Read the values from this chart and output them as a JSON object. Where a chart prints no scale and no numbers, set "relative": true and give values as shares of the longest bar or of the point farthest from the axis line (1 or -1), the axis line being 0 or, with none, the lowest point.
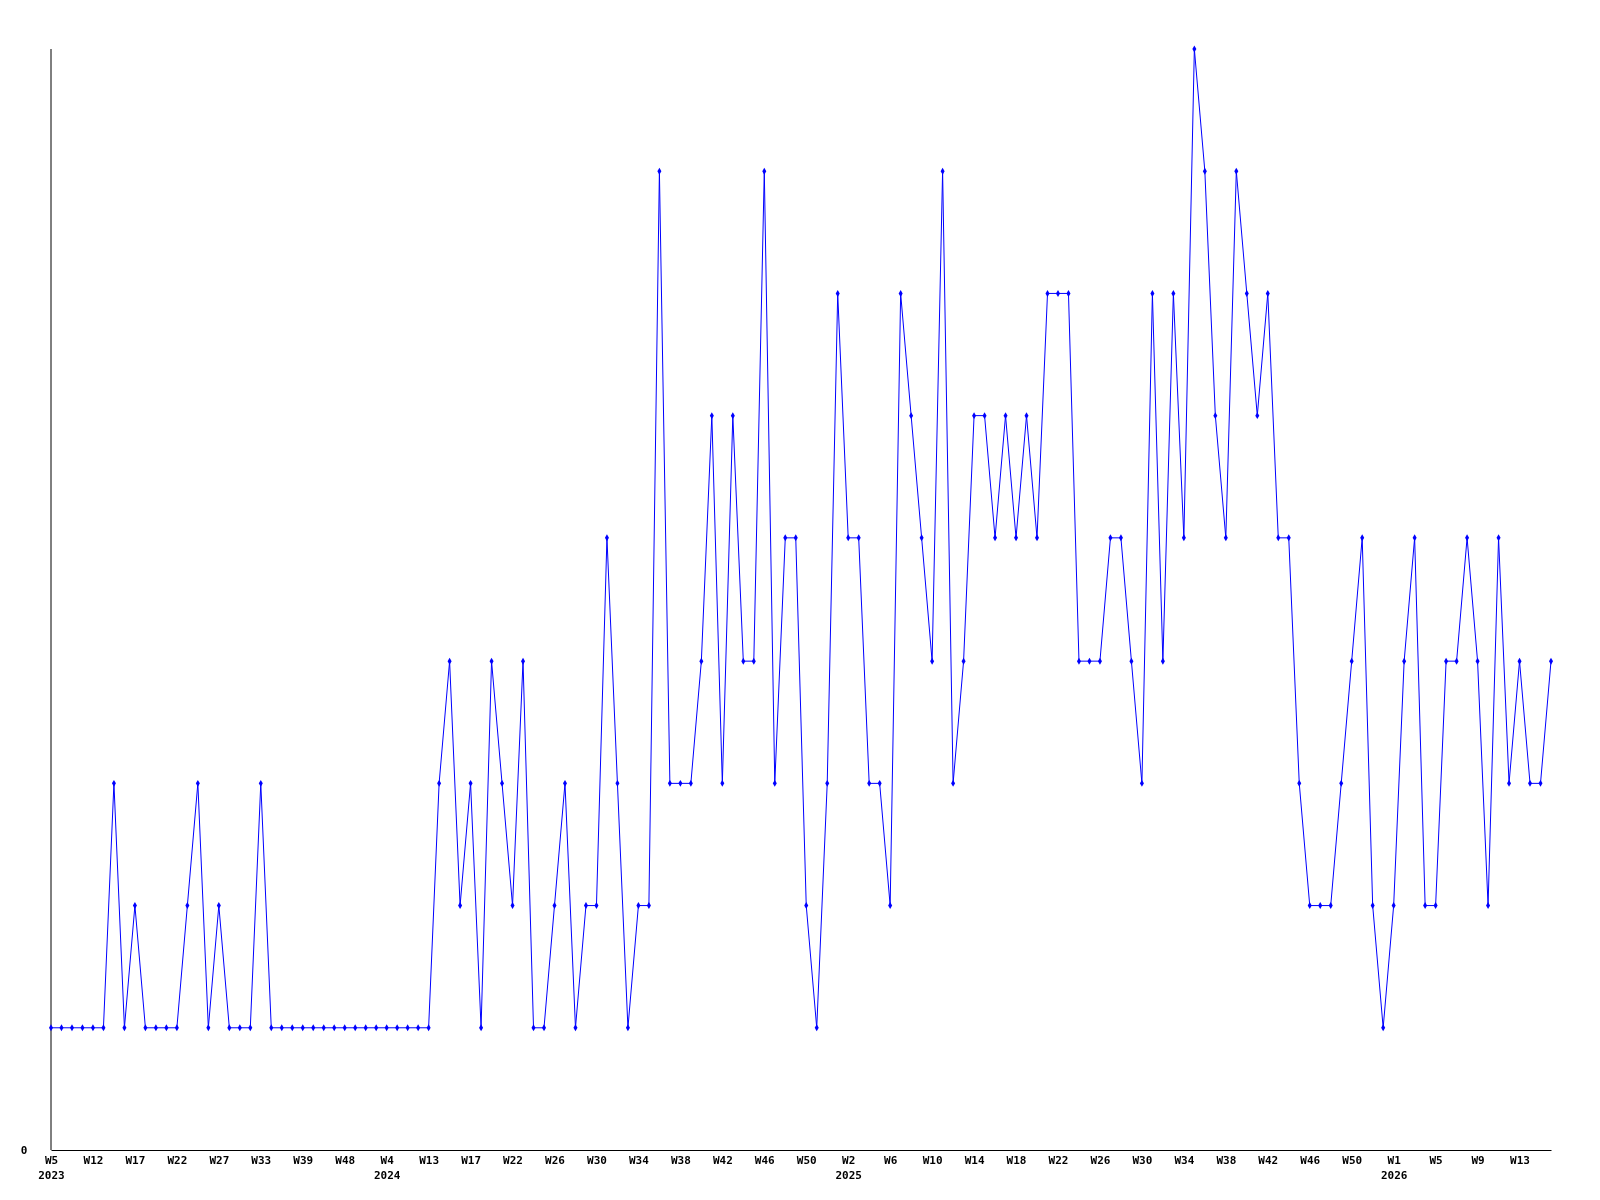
{
  "chart_data": {
    "type": "line",
    "relative": true,
    "marker": "diamond",
    "annotations": [
      "0"
    ],
    "categories": [
      "W5\n2023",
      null,
      null,
      null,
      "W12",
      null,
      null,
      null,
      "W17",
      null,
      null,
      null,
      "W22",
      null,
      null,
      null,
      "W27",
      null,
      null,
      null,
      "W33",
      null,
      null,
      null,
      "W39",
      null,
      null,
      null,
      "W48",
      null,
      null,
      null,
      "W4\n2024",
      null,
      null,
      null,
      "W13",
      null,
      null,
      null,
      "W17",
      null,
      null,
      null,
      "W22",
      null,
      null,
      null,
      "W26",
      null,
      null,
      null,
      "W30",
      null,
      null,
      null,
      "W34",
      null,
      null,
      null,
      "W38",
      null,
      null,
      null,
      "W42",
      null,
      null,
      null,
      "W46",
      null,
      null,
      null,
      "W50",
      null,
      null,
      null,
      "W2\n2025",
      null,
      null,
      null,
      "W6",
      null,
      null,
      null,
      "W10",
      null,
      null,
      null,
      "W14",
      null,
      null,
      null,
      "W18",
      null,
      null,
      null,
      "W22",
      null,
      null,
      null,
      "W26",
      null,
      null,
      null,
      "W30",
      null,
      null,
      null,
      "W34",
      null,
      null,
      null,
      "W38",
      null,
      null,
      null,
      "W42",
      null,
      null,
      null,
      "W46",
      null,
      null,
      null,
      "W50",
      null,
      null,
      null,
      "W1\n2026",
      null,
      null,
      null,
      "W5",
      null,
      null,
      null,
      "W9",
      null,
      null,
      null,
      "W13",
      null,
      null,
      null
    ],
    "series": [
      {
        "color": "#0000ff",
        "values": [
          0.111,
          0.111,
          0.111,
          0.111,
          0.111,
          0.111,
          0.333,
          0.111,
          0.222,
          0.111,
          0.111,
          0.111,
          0.111,
          0.222,
          0.333,
          0.111,
          0.222,
          0.111,
          0.111,
          0.111,
          0.333,
          0.111,
          0.111,
          0.111,
          0.111,
          0.111,
          0.111,
          0.111,
          0.111,
          0.111,
          0.111,
          0.111,
          0.111,
          0.111,
          0.111,
          0.111,
          0.111,
          0.333,
          0.444,
          0.222,
          0.333,
          0.111,
          0.444,
          0.333,
          0.222,
          0.444,
          0.111,
          0.111,
          0.222,
          0.333,
          0.111,
          0.222,
          0.222,
          0.556,
          0.333,
          0.111,
          0.222,
          0.222,
          0.889,
          0.333,
          0.333,
          0.333,
          0.444,
          0.667,
          0.333,
          0.667,
          0.444,
          0.444,
          0.889,
          0.333,
          0.556,
          0.556,
          0.222,
          0.111,
          0.333,
          0.778,
          0.556,
          0.556,
          0.333,
          0.333,
          0.222,
          0.778,
          0.667,
          0.556,
          0.444,
          0.889,
          0.333,
          0.444,
          0.667,
          0.667,
          0.556,
          0.667,
          0.556,
          0.667,
          0.556,
          0.778,
          0.778,
          0.778,
          0.444,
          0.444,
          0.444,
          0.556,
          0.556,
          0.444,
          0.333,
          0.778,
          0.444,
          0.778,
          0.556,
          1,
          0.889,
          0.667,
          0.556,
          0.889,
          0.778,
          0.667,
          0.778,
          0.556,
          0.556,
          0.333,
          0.222,
          0.222,
          0.222,
          0.333,
          0.444,
          0.556,
          0.222,
          0.111,
          0.222,
          0.444,
          0.556,
          0.222,
          0.222,
          0.444,
          0.444,
          0.556,
          0.444,
          0.222,
          0.556,
          0.333,
          0.444,
          0.333,
          0.333,
          0.444
        ]
      }
    ]
  }
}
